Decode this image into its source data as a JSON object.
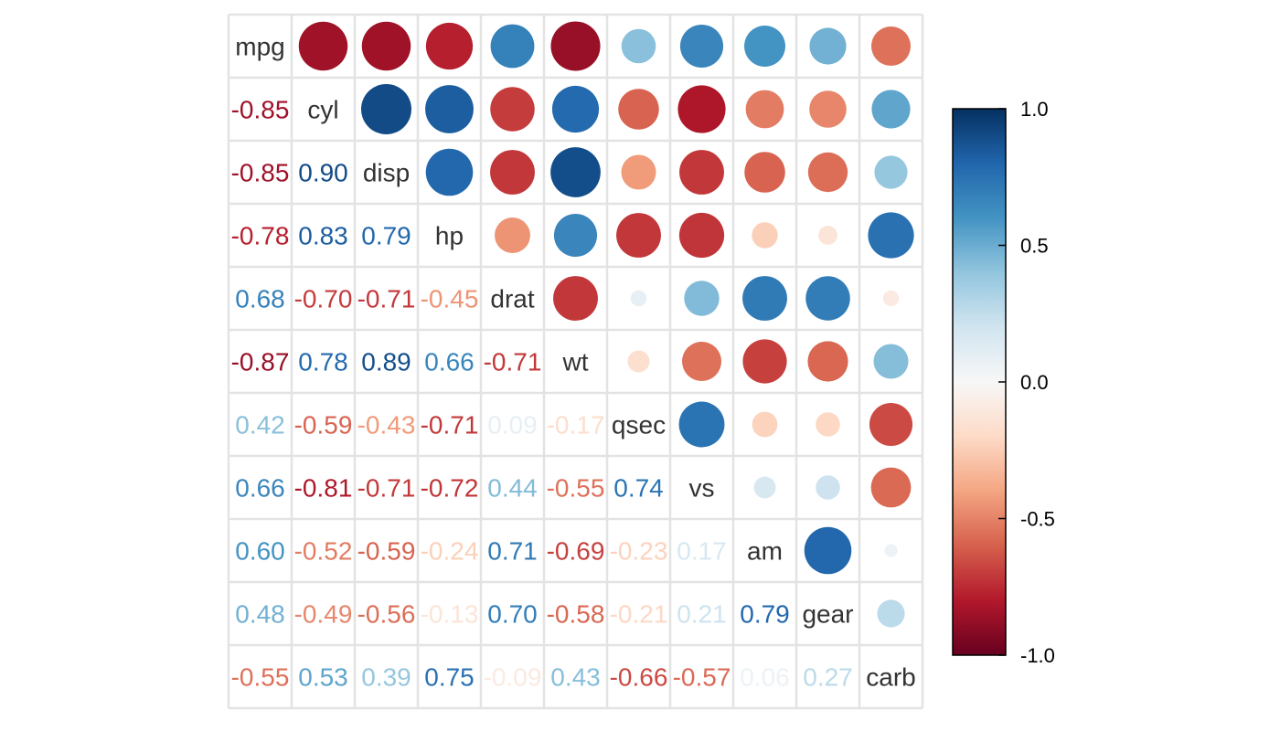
{
  "chart_data": {
    "type": "heatmap",
    "variables": [
      "mpg",
      "cyl",
      "disp",
      "hp",
      "drat",
      "wt",
      "qsec",
      "vs",
      "am",
      "gear",
      "carb"
    ],
    "matrix": [
      [
        1.0,
        -0.85,
        -0.85,
        -0.78,
        0.68,
        -0.87,
        0.42,
        0.66,
        0.6,
        0.48,
        -0.55
      ],
      [
        -0.85,
        1.0,
        0.9,
        0.83,
        -0.7,
        0.78,
        -0.59,
        -0.81,
        -0.52,
        -0.49,
        0.53
      ],
      [
        -0.85,
        0.9,
        1.0,
        0.79,
        -0.71,
        0.89,
        -0.43,
        -0.71,
        -0.59,
        -0.56,
        0.39
      ],
      [
        -0.78,
        0.83,
        0.79,
        1.0,
        -0.45,
        0.66,
        -0.71,
        -0.72,
        -0.24,
        -0.13,
        0.75
      ],
      [
        0.68,
        -0.7,
        -0.71,
        -0.45,
        1.0,
        -0.71,
        0.09,
        0.44,
        0.71,
        0.7,
        -0.09
      ],
      [
        -0.87,
        0.78,
        0.89,
        0.66,
        -0.71,
        1.0,
        -0.17,
        -0.55,
        -0.69,
        -0.58,
        0.43
      ],
      [
        0.42,
        -0.59,
        -0.43,
        -0.71,
        0.09,
        -0.17,
        1.0,
        0.74,
        -0.23,
        -0.21,
        -0.66
      ],
      [
        0.66,
        -0.81,
        -0.71,
        -0.72,
        0.44,
        -0.55,
        0.74,
        1.0,
        0.17,
        0.21,
        -0.57
      ],
      [
        0.6,
        -0.52,
        -0.59,
        -0.24,
        0.71,
        -0.69,
        -0.23,
        0.17,
        1.0,
        0.79,
        0.06
      ],
      [
        0.48,
        -0.49,
        -0.56,
        -0.13,
        0.7,
        -0.58,
        -0.21,
        0.21,
        0.79,
        1.0,
        0.27
      ],
      [
        -0.55,
        0.53,
        0.39,
        0.75,
        -0.09,
        0.43,
        -0.66,
        -0.57,
        0.06,
        0.27,
        1.0
      ]
    ],
    "lower": "numbers",
    "diagonal": "variable names",
    "upper": "circles",
    "color_scale": {
      "ticks": [
        "1.0",
        "0.5",
        "0.0",
        "-0.5",
        "-1.0"
      ],
      "range": [
        -1,
        1
      ],
      "colors": [
        "#67001F",
        "#B2182B",
        "#D6604D",
        "#F4A582",
        "#FDDBC7",
        "#F7F7F7",
        "#D1E5F0",
        "#92C5DE",
        "#4393C3",
        "#2166AC",
        "#053061"
      ]
    },
    "legend_placement": "right",
    "grid": true,
    "grid_color": "#e3e3e3",
    "label_color": "#333333"
  }
}
